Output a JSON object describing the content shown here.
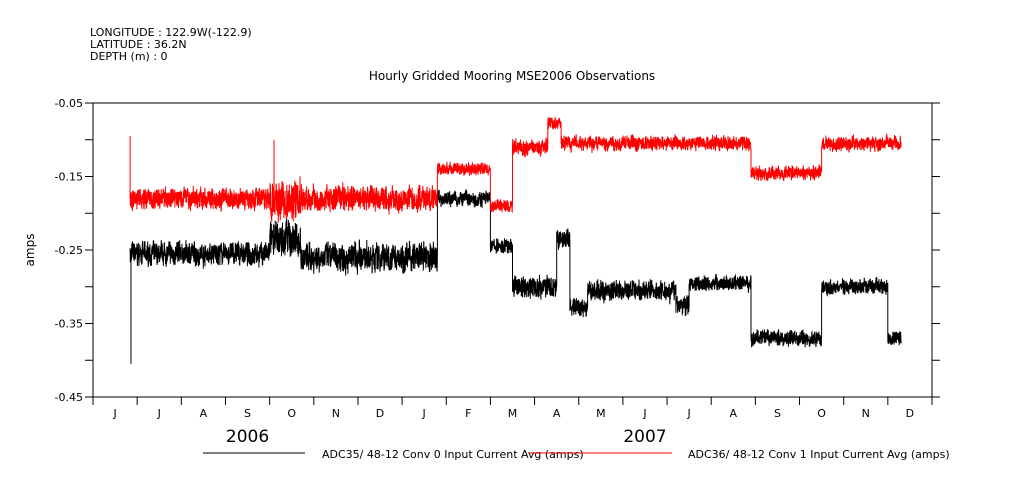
{
  "header": {
    "longitude": "LONGITUDE : 122.9W(-122.9)",
    "latitude": "LATITUDE : 36.2N",
    "depth": "DEPTH (m) : 0"
  },
  "chart_data": {
    "type": "line",
    "title": "Hourly Gridded Mooring MSE2006 Observations",
    "xlabel": "",
    "ylabel": "amps",
    "x_units": "months since 2006-06-01",
    "xlim": [
      0,
      19
    ],
    "ylim": [
      -0.45,
      -0.05
    ],
    "y_ticks": [
      -0.05,
      -0.1,
      -0.15,
      -0.2,
      -0.25,
      -0.3,
      -0.35,
      -0.4,
      -0.45
    ],
    "y_tick_labels": [
      "-0.05",
      "-0.15",
      "-0.25",
      "-0.35",
      "-0.45"
    ],
    "x_tick_labels": [
      "J",
      "J",
      "A",
      "S",
      "O",
      "N",
      "D",
      "J",
      "F",
      "M",
      "A",
      "M",
      "J",
      "J",
      "A",
      "S",
      "O",
      "N",
      "D"
    ],
    "year_labels": [
      {
        "label": "2006",
        "month": 3.5
      },
      {
        "label": "2007",
        "month": 12.5
      }
    ],
    "legend_placement": "bottom",
    "series": [
      {
        "name": "ADC35/ 48-12 Conv 0 Input Current Avg (amps)",
        "color": "#000000",
        "segments": [
          {
            "start": 0.84,
            "end": 4.0,
            "mean": -0.255,
            "noise": 0.022
          },
          {
            "start": 4.0,
            "end": 4.7,
            "mean": -0.235,
            "noise": 0.035
          },
          {
            "start": 4.7,
            "end": 7.8,
            "mean": -0.26,
            "noise": 0.028
          },
          {
            "start": 7.8,
            "end": 9.0,
            "mean": -0.18,
            "noise": 0.015
          },
          {
            "start": 9.0,
            "end": 9.5,
            "mean": -0.245,
            "noise": 0.015
          },
          {
            "start": 9.5,
            "end": 10.5,
            "mean": -0.3,
            "noise": 0.022
          },
          {
            "start": 10.5,
            "end": 10.8,
            "mean": -0.235,
            "noise": 0.02
          },
          {
            "start": 10.8,
            "end": 11.2,
            "mean": -0.33,
            "noise": 0.02
          },
          {
            "start": 11.2,
            "end": 13.2,
            "mean": -0.305,
            "noise": 0.02
          },
          {
            "start": 13.2,
            "end": 13.5,
            "mean": -0.325,
            "noise": 0.02
          },
          {
            "start": 13.5,
            "end": 14.9,
            "mean": -0.295,
            "noise": 0.015
          },
          {
            "start": 14.9,
            "end": 16.5,
            "mean": -0.37,
            "noise": 0.015
          },
          {
            "start": 16.5,
            "end": 18.0,
            "mean": -0.3,
            "noise": 0.015
          },
          {
            "start": 18.0,
            "end": 18.3,
            "mean": -0.37,
            "noise": 0.015
          }
        ],
        "spikes": [
          {
            "x": 0.86,
            "y": -0.405
          }
        ]
      },
      {
        "name": "ADC36/ 48-12 Conv 1 Input Current Avg (amps)",
        "color": "#ff0000",
        "segments": [
          {
            "start": 0.84,
            "end": 4.0,
            "mean": -0.18,
            "noise": 0.02
          },
          {
            "start": 4.0,
            "end": 4.7,
            "mean": -0.18,
            "noise": 0.04
          },
          {
            "start": 4.7,
            "end": 7.8,
            "mean": -0.18,
            "noise": 0.025
          },
          {
            "start": 7.8,
            "end": 9.0,
            "mean": -0.14,
            "noise": 0.012
          },
          {
            "start": 9.0,
            "end": 9.5,
            "mean": -0.19,
            "noise": 0.012
          },
          {
            "start": 9.5,
            "end": 10.3,
            "mean": -0.11,
            "noise": 0.015
          },
          {
            "start": 10.3,
            "end": 10.6,
            "mean": -0.078,
            "noise": 0.012
          },
          {
            "start": 10.6,
            "end": 14.9,
            "mean": -0.105,
            "noise": 0.014
          },
          {
            "start": 14.9,
            "end": 16.5,
            "mean": -0.145,
            "noise": 0.014
          },
          {
            "start": 16.5,
            "end": 18.3,
            "mean": -0.105,
            "noise": 0.014
          }
        ],
        "spikes": [
          {
            "x": 0.84,
            "y": -0.095
          },
          {
            "x": 4.1,
            "y": -0.1
          }
        ]
      }
    ]
  }
}
